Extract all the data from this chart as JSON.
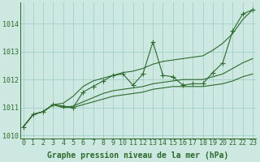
{
  "xlabel": "Graphe pression niveau de la mer (hPa)",
  "x_values": [
    0,
    1,
    2,
    3,
    4,
    5,
    6,
    7,
    8,
    9,
    10,
    11,
    12,
    13,
    14,
    15,
    16,
    17,
    18,
    19,
    20,
    21,
    22,
    23
  ],
  "series_main": [
    1010.3,
    1010.75,
    1010.85,
    1011.1,
    1011.05,
    1011.0,
    1011.55,
    1011.75,
    1011.95,
    1012.15,
    1012.2,
    1011.8,
    1012.2,
    1013.35,
    1012.15,
    1012.1,
    1011.8,
    1011.85,
    1011.85,
    1012.25,
    1012.6,
    1013.75,
    1014.35,
    1014.5
  ],
  "series_upper": [
    1010.3,
    1010.75,
    1010.85,
    1011.1,
    1011.15,
    1011.4,
    1011.75,
    1011.95,
    1012.05,
    1012.15,
    1012.25,
    1012.3,
    1012.4,
    1012.55,
    1012.65,
    1012.7,
    1012.75,
    1012.8,
    1012.85,
    1013.05,
    1013.3,
    1013.65,
    1014.15,
    1014.5
  ],
  "series_lower": [
    1010.3,
    1010.75,
    1010.85,
    1011.1,
    1011.0,
    1011.0,
    1011.1,
    1011.2,
    1011.3,
    1011.4,
    1011.45,
    1011.5,
    1011.55,
    1011.65,
    1011.7,
    1011.75,
    1011.75,
    1011.75,
    1011.75,
    1011.8,
    1011.85,
    1011.95,
    1012.1,
    1012.2
  ],
  "series_mid": [
    1010.3,
    1010.75,
    1010.85,
    1011.1,
    1011.0,
    1011.05,
    1011.2,
    1011.35,
    1011.5,
    1011.6,
    1011.65,
    1011.7,
    1011.75,
    1011.85,
    1011.9,
    1011.95,
    1012.0,
    1012.0,
    1012.0,
    1012.1,
    1012.2,
    1012.4,
    1012.6,
    1012.75
  ],
  "line_color": "#2d6a2d",
  "bg_color": "#cce8e0",
  "grid_color": "#99ccc0",
  "ylim": [
    1009.9,
    1014.75
  ],
  "yticks": [
    1010,
    1011,
    1012,
    1013,
    1014
  ],
  "xticks": [
    0,
    1,
    2,
    3,
    4,
    5,
    6,
    7,
    8,
    9,
    10,
    11,
    12,
    13,
    14,
    15,
    16,
    17,
    18,
    19,
    20,
    21,
    22,
    23
  ],
  "xlabel_fontsize": 7.0,
  "tick_fontsize": 6.0,
  "marker_size": 2.2,
  "line_width": 0.8
}
